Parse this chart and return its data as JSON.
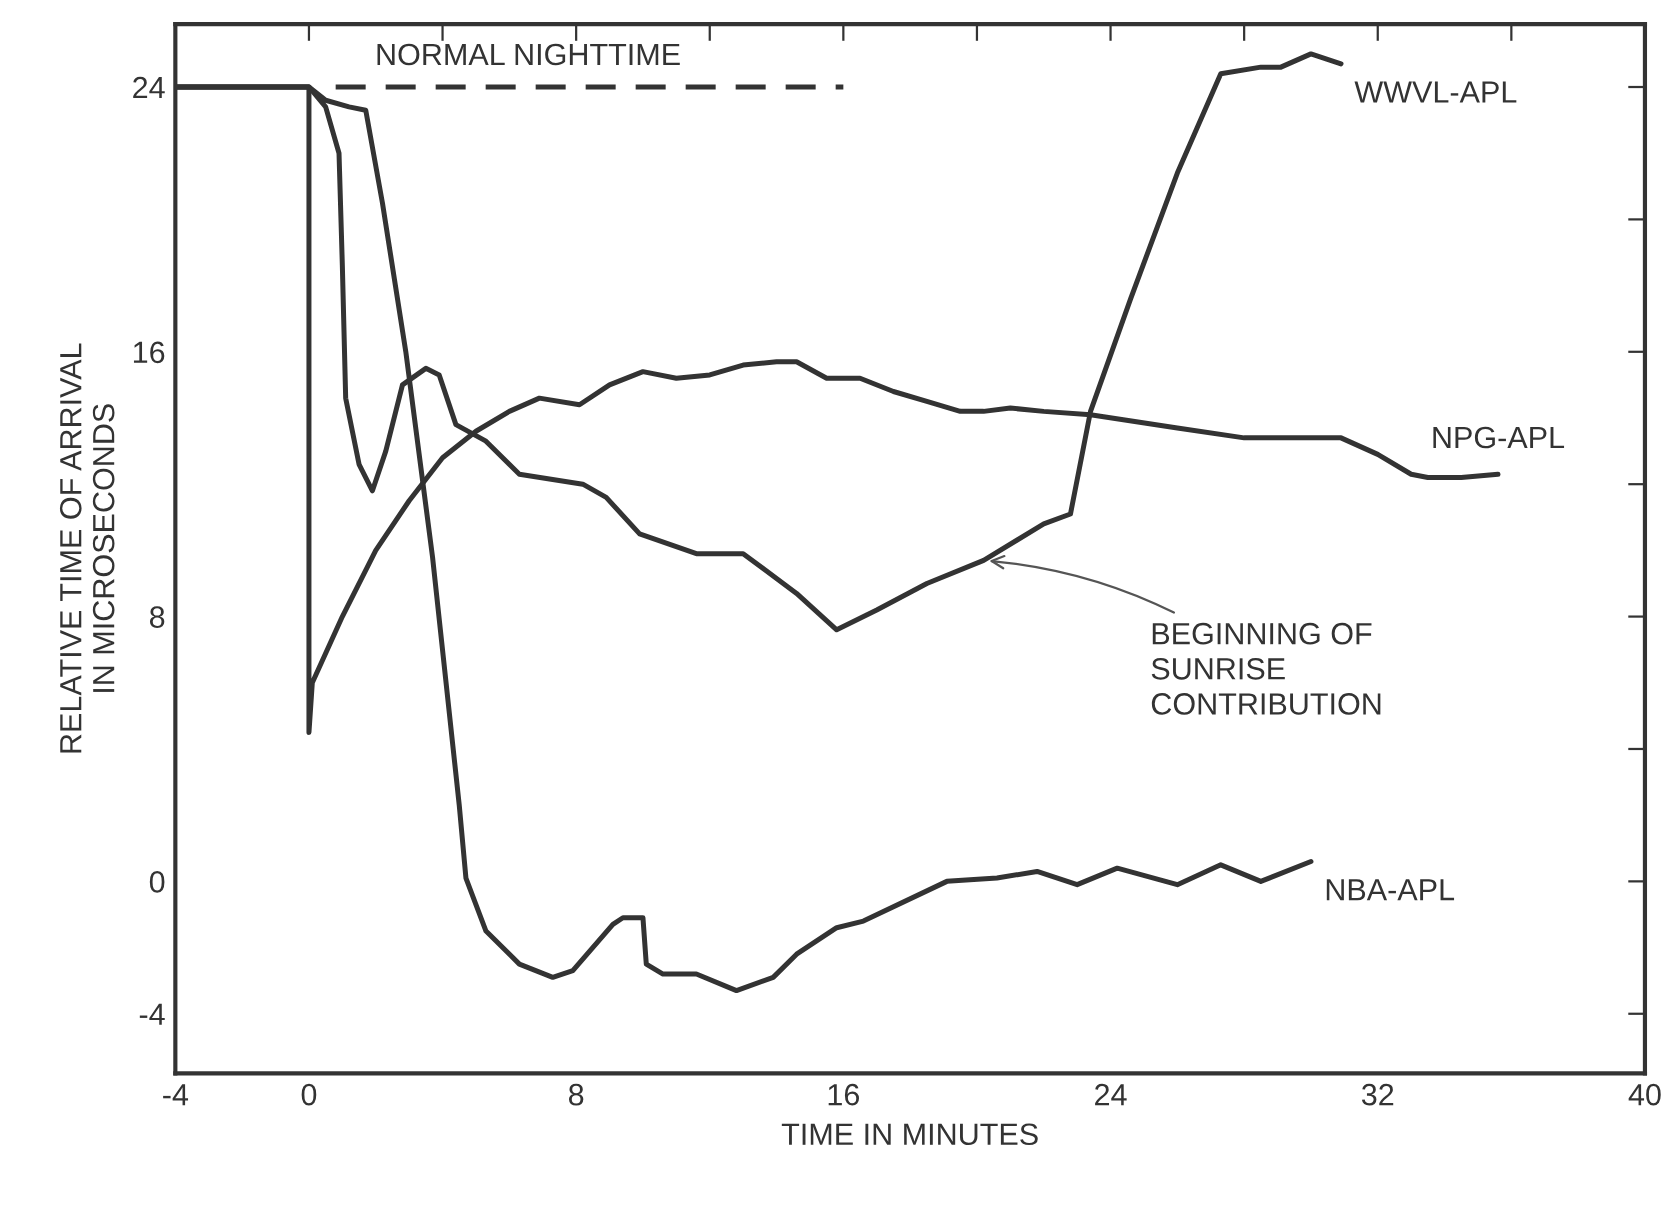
{
  "chart_data": {
    "type": "line",
    "xlabel": "TIME IN MINUTES",
    "ylabel": "RELATIVE TIME OF ARRIVAL\nIN MICROSECONDS",
    "xlim": [
      -4,
      40
    ],
    "xticks": [
      -4,
      0,
      {
        "value": 4,
        "label": null
      },
      8,
      {
        "value": 12,
        "label": null
      },
      16,
      {
        "value": 20,
        "label": null
      },
      24,
      {
        "value": 28,
        "label": null
      },
      32,
      {
        "value": 36,
        "label": null
      },
      40
    ],
    "ylim": [
      -5.8,
      25.9
    ],
    "yticks": [
      -4,
      0,
      {
        "value": 4,
        "label": null
      },
      8,
      {
        "value": 12,
        "label": null
      },
      16,
      {
        "value": 20,
        "label": null
      },
      24
    ],
    "grid": false,
    "legend": false,
    "series": [
      {
        "name": "WWVL-APL",
        "color": "#333333",
        "x": [
          -4,
          0,
          0.5,
          0.9,
          1.0,
          1.1,
          1.5,
          1.9,
          2.3,
          2.8,
          3.5,
          3.9,
          4.4,
          5.3,
          6.3,
          8.2,
          8.9,
          9.9,
          11.6,
          13,
          14.6,
          15.8,
          17,
          18.5,
          20.2,
          22,
          22.8,
          23.4,
          24.6,
          26,
          27.3,
          28.5,
          29.1,
          30,
          30.9
        ],
        "values": [
          24,
          24,
          23.4,
          22,
          18.6,
          14.6,
          12.6,
          11.8,
          13,
          15,
          15.5,
          15.3,
          13.8,
          13.3,
          12.3,
          12,
          11.6,
          10.5,
          9.9,
          9.9,
          8.7,
          7.6,
          8.2,
          9,
          9.7,
          10.8,
          11.1,
          14.2,
          17.6,
          21.4,
          24.4,
          24.6,
          24.6,
          25,
          24.7
        ]
      },
      {
        "name": "NPG-APL",
        "color": "#333333",
        "x": [
          -4,
          0,
          0,
          0.1,
          1,
          2,
          3,
          4,
          5,
          6,
          6.9,
          8.1,
          9,
          10,
          11,
          12,
          13,
          14,
          14.6,
          15.5,
          16.5,
          17.5,
          18.5,
          19.5,
          20.2,
          21,
          22,
          23.4,
          26,
          28,
          30.9,
          32,
          33,
          33.5,
          34.5,
          35.6
        ],
        "values": [
          24,
          24,
          4.5,
          6,
          8,
          10,
          11.5,
          12.8,
          13.6,
          14.2,
          14.6,
          14.4,
          15,
          15.4,
          15.2,
          15.3,
          15.6,
          15.7,
          15.7,
          15.2,
          15.2,
          14.8,
          14.5,
          14.2,
          14.2,
          14.3,
          14.2,
          14.1,
          13.7,
          13.4,
          13.4,
          12.9,
          12.3,
          12.2,
          12.2,
          12.3
        ]
      },
      {
        "name": "NBA-APL",
        "color": "#333333",
        "x": [
          -4,
          0,
          0.5,
          1.2,
          1.7,
          2.2,
          2.9,
          3.7,
          4.5,
          4.7,
          5.3,
          6.3,
          7.3,
          7.9,
          9.1,
          9.4,
          10,
          10.1,
          10.6,
          11.6,
          12.8,
          13.9,
          14.6,
          15.8,
          16.6,
          19.1,
          20.6,
          21.8,
          23,
          24.2,
          26,
          27.3,
          28.5,
          30
        ],
        "values": [
          24,
          24,
          23.6,
          23.4,
          23.3,
          20.5,
          16,
          9.8,
          2.3,
          0.1,
          -1.5,
          -2.5,
          -2.9,
          -2.7,
          -1.3,
          -1.1,
          -1.1,
          -2.5,
          -2.8,
          -2.8,
          -3.3,
          -2.9,
          -2.2,
          -1.4,
          -1.2,
          0,
          0.1,
          0.3,
          -0.1,
          0.4,
          -0.1,
          0.5,
          0,
          0.6
        ]
      },
      {
        "color": "#333333",
        "line_style": "dashed",
        "x": [
          0.8,
          16
        ],
        "values": [
          24,
          24
        ]
      }
    ],
    "annotations": [
      "NORMAL NIGHTTIME",
      {
        "text": "BEGINNING OF\nSUNRISE\nCONTRIBUTION",
        "x": 20.2,
        "y": 9.7
      }
    ]
  }
}
